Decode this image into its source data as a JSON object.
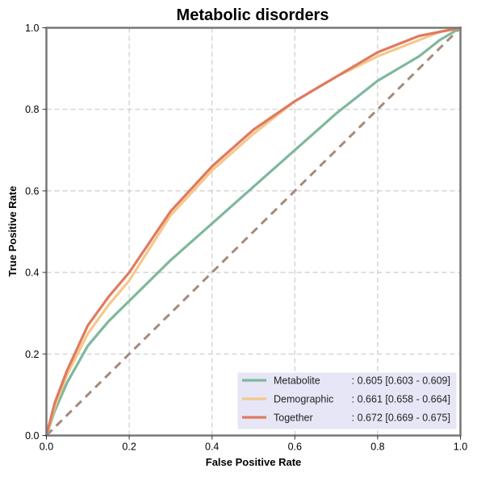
{
  "chart_data": {
    "type": "line",
    "title": "Metabolic disorders",
    "xlabel": "False Positive Rate",
    "ylabel": "True Positive Rate",
    "xlim": [
      0,
      1
    ],
    "ylim": [
      0,
      1
    ],
    "x_ticks": [
      "0.0",
      "0.2",
      "0.4",
      "0.6",
      "0.8",
      "1.0"
    ],
    "y_ticks": [
      "0.0",
      "0.2",
      "0.4",
      "0.6",
      "0.8",
      "1.0"
    ],
    "grid": true,
    "legend_position": "bottom-right",
    "diagonal": {
      "x": [
        0,
        1
      ],
      "y": [
        0,
        1
      ],
      "style": "dashed",
      "color": "#a58a7b"
    },
    "series": [
      {
        "name": "Metabolite",
        "legend_name": "Metabolite",
        "legend_value": ": 0.605 [0.603 - 0.609]",
        "color": "#7fb89c",
        "x": [
          0,
          0.02,
          0.05,
          0.1,
          0.15,
          0.2,
          0.3,
          0.4,
          0.5,
          0.6,
          0.7,
          0.8,
          0.9,
          0.95,
          1.0
        ],
        "y": [
          0,
          0.06,
          0.13,
          0.22,
          0.28,
          0.33,
          0.43,
          0.52,
          0.61,
          0.7,
          0.79,
          0.87,
          0.93,
          0.97,
          1.0
        ]
      },
      {
        "name": "Demographic",
        "legend_name": "Demographic",
        "legend_value": ": 0.661 [0.658 - 0.664]",
        "color": "#f5c88a",
        "x": [
          0,
          0.02,
          0.05,
          0.1,
          0.15,
          0.2,
          0.3,
          0.4,
          0.5,
          0.6,
          0.7,
          0.8,
          0.9,
          0.95,
          1.0
        ],
        "y": [
          0,
          0.07,
          0.15,
          0.25,
          0.32,
          0.38,
          0.54,
          0.65,
          0.74,
          0.82,
          0.88,
          0.93,
          0.97,
          0.99,
          1.0
        ]
      },
      {
        "name": "Together",
        "legend_name": "Together",
        "legend_value": ": 0.672 [0.669 - 0.675]",
        "color": "#e07a5f",
        "x": [
          0,
          0.02,
          0.05,
          0.1,
          0.15,
          0.2,
          0.3,
          0.4,
          0.5,
          0.6,
          0.7,
          0.8,
          0.9,
          0.95,
          1.0
        ],
        "y": [
          0,
          0.08,
          0.16,
          0.27,
          0.34,
          0.4,
          0.55,
          0.66,
          0.75,
          0.82,
          0.88,
          0.94,
          0.98,
          0.99,
          1.0
        ]
      }
    ]
  }
}
